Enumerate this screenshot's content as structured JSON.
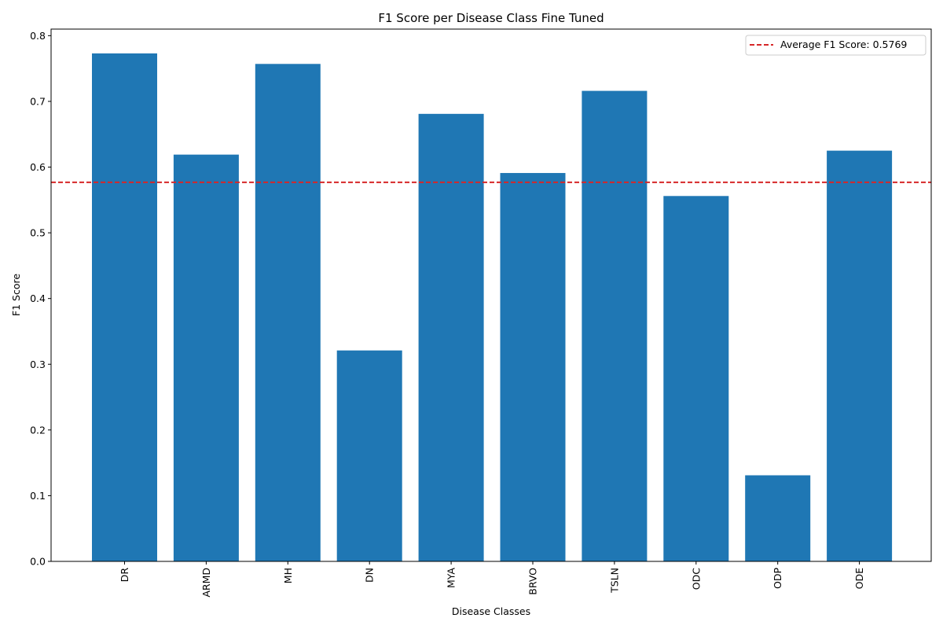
{
  "chart_data": {
    "type": "bar",
    "title": "F1 Score per Disease Class Fine Tuned",
    "xlabel": "Disease Classes",
    "ylabel": "F1 Score",
    "categories": [
      "DR",
      "ARMD",
      "MH",
      "DN",
      "MYA",
      "BRVO",
      "TSLN",
      "ODC",
      "ODP",
      "ODE"
    ],
    "values": [
      0.773,
      0.619,
      0.757,
      0.321,
      0.681,
      0.591,
      0.716,
      0.556,
      0.131,
      0.625
    ],
    "ylim": [
      0,
      0.81
    ],
    "yticks": [
      "0.0",
      "0.1",
      "0.2",
      "0.3",
      "0.4",
      "0.5",
      "0.6",
      "0.7",
      "0.8"
    ],
    "bar_color": "#1f77b4",
    "average_line": {
      "value": 0.5769,
      "label": "Average F1 Score: 0.5769",
      "color": "#d62728"
    },
    "legend_position": "top-right",
    "grid": false
  }
}
